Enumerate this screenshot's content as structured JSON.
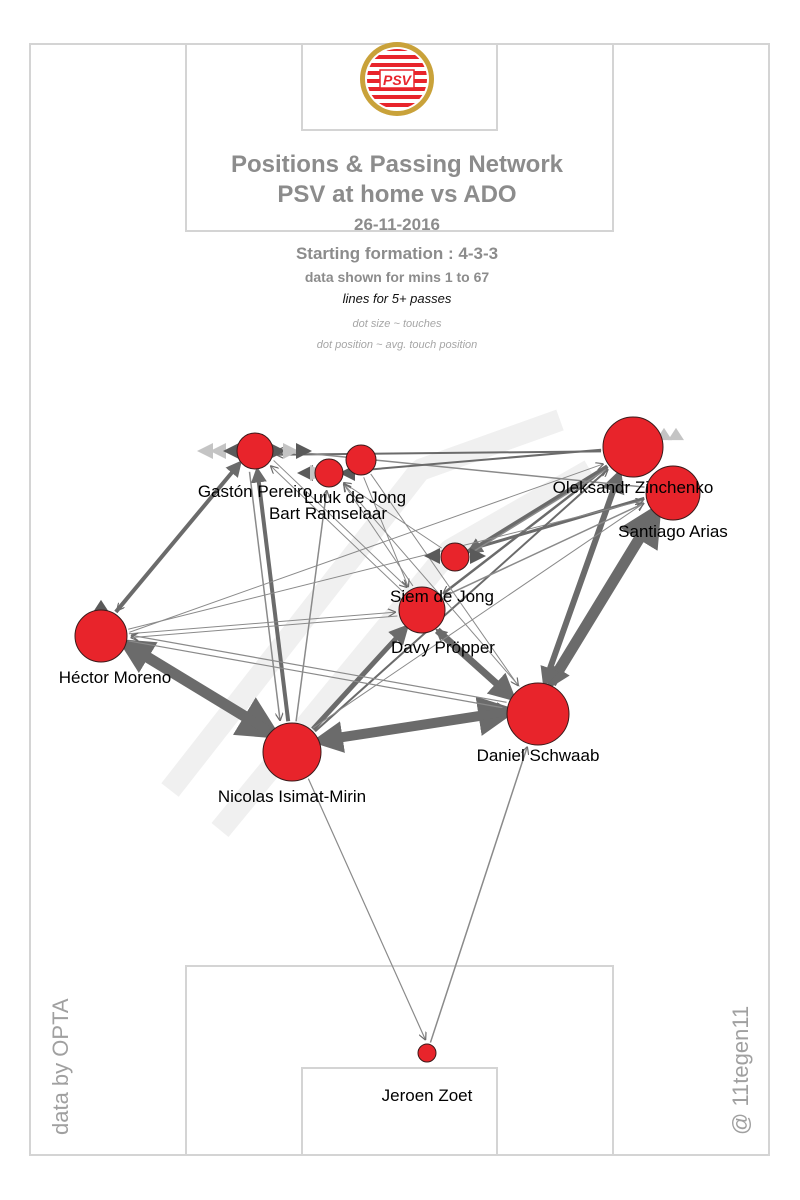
{
  "header": {
    "title_line1": "Positions & Passing Network",
    "title_line2": "PSV at home vs ADO",
    "date": "26-11-2016",
    "formation": "Starting formation : 4-3-3",
    "minutes": "data shown for mins 1 to 67",
    "lines_note": "lines for 5+ passes",
    "dot_size_note": "dot size ~ touches",
    "dot_position_note": "dot position ~ avg. touch position"
  },
  "logo": {
    "text": "PSV",
    "colors": {
      "red": "#e8242b",
      "gold": "#c9a23a",
      "white": "#ffffff"
    }
  },
  "credits": {
    "left": "data by OPTA",
    "right": "@ 11tegen11"
  },
  "colors": {
    "pitch_line": "#d4d4d4",
    "dot_fill": "#e8242b",
    "pass_line": "#6b6b6b",
    "marker": "#5a5a5a",
    "marker_light": "#c4c4c4"
  },
  "players": [
    {
      "id": "pereiro",
      "name": "Gastón Pereiro"
    },
    {
      "id": "luuk",
      "name": "Luuk de Jong"
    },
    {
      "id": "ramselaar",
      "name": "Bart Ramselaar"
    },
    {
      "id": "zinchenko",
      "name": "Oleksandr Zinchenko"
    },
    {
      "id": "arias",
      "name": "Santiago Arias"
    },
    {
      "id": "siem",
      "name": "Siem de Jong"
    },
    {
      "id": "propper",
      "name": "Davy Pröpper"
    },
    {
      "id": "moreno",
      "name": "Héctor Moreno"
    },
    {
      "id": "schwaab",
      "name": "Daniel Schwaab"
    },
    {
      "id": "isimat",
      "name": "Nicolas Isimat-Mirin"
    },
    {
      "id": "zoet",
      "name": "Jeroen Zoet"
    }
  ]
}
